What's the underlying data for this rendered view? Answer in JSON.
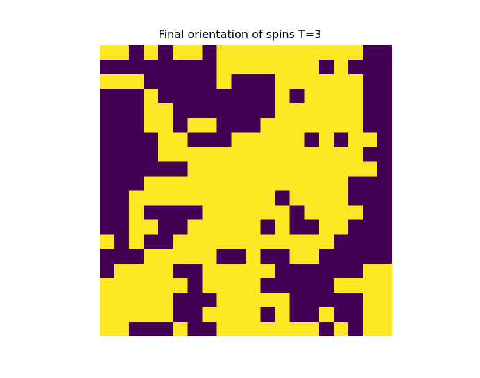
{
  "chart_data": {
    "type": "heatmap",
    "title": "Final orientation of spins T=3",
    "xlabel": "",
    "ylabel": "",
    "axes_visible": false,
    "colormap": "viridis",
    "colors": {
      "down": "#440154",
      "up": "#fde725"
    },
    "values_legend": {
      "0": "spin down (dark purple)",
      "1": "spin up (yellow)"
    },
    "grid": [
      [
        1,
        1,
        0,
        1,
        0,
        1,
        1,
        0,
        1,
        1,
        1,
        1,
        1,
        1,
        1,
        1,
        1,
        1,
        0,
        0
      ],
      [
        0,
        0,
        0,
        0,
        0,
        0,
        0,
        0,
        1,
        1,
        1,
        1,
        1,
        1,
        1,
        0,
        1,
        0,
        0,
        0
      ],
      [
        1,
        1,
        1,
        0,
        0,
        0,
        0,
        0,
        1,
        0,
        0,
        0,
        1,
        1,
        1,
        1,
        1,
        1,
        0,
        0
      ],
      [
        0,
        0,
        0,
        1,
        0,
        0,
        0,
        0,
        0,
        0,
        0,
        0,
        1,
        0,
        1,
        1,
        1,
        1,
        0,
        0
      ],
      [
        0,
        0,
        0,
        1,
        1,
        0,
        0,
        0,
        0,
        0,
        0,
        0,
        1,
        1,
        1,
        1,
        1,
        1,
        0,
        0
      ],
      [
        0,
        0,
        0,
        1,
        1,
        0,
        1,
        1,
        0,
        0,
        0,
        1,
        1,
        1,
        1,
        1,
        1,
        1,
        0,
        0
      ],
      [
        0,
        0,
        0,
        0,
        1,
        1,
        0,
        0,
        0,
        1,
        1,
        1,
        1,
        1,
        0,
        1,
        0,
        1,
        1,
        0
      ],
      [
        0,
        0,
        0,
        0,
        1,
        1,
        1,
        1,
        1,
        1,
        1,
        1,
        1,
        1,
        1,
        1,
        1,
        1,
        0,
        0
      ],
      [
        0,
        0,
        0,
        0,
        0,
        0,
        1,
        1,
        1,
        1,
        1,
        1,
        1,
        1,
        1,
        1,
        1,
        1,
        1,
        0
      ],
      [
        0,
        0,
        0,
        1,
        1,
        1,
        1,
        1,
        1,
        1,
        1,
        1,
        1,
        1,
        1,
        1,
        1,
        0,
        0,
        0
      ],
      [
        0,
        0,
        1,
        1,
        1,
        1,
        1,
        1,
        1,
        1,
        1,
        1,
        0,
        1,
        1,
        1,
        1,
        0,
        0,
        0
      ],
      [
        0,
        0,
        1,
        0,
        0,
        0,
        0,
        1,
        1,
        1,
        1,
        1,
        1,
        0,
        1,
        1,
        1,
        1,
        0,
        0
      ],
      [
        0,
        0,
        1,
        1,
        0,
        0,
        1,
        1,
        1,
        1,
        1,
        0,
        1,
        0,
        0,
        1,
        1,
        0,
        0,
        0
      ],
      [
        1,
        0,
        1,
        0,
        0,
        1,
        1,
        1,
        1,
        1,
        1,
        1,
        1,
        1,
        1,
        1,
        0,
        0,
        0,
        0
      ],
      [
        0,
        0,
        0,
        1,
        1,
        1,
        1,
        1,
        0,
        0,
        1,
        0,
        0,
        1,
        1,
        0,
        0,
        0,
        0,
        0
      ],
      [
        0,
        1,
        1,
        1,
        1,
        0,
        0,
        1,
        1,
        1,
        1,
        1,
        0,
        0,
        0,
        0,
        0,
        0,
        1,
        1
      ],
      [
        1,
        1,
        1,
        1,
        1,
        1,
        0,
        1,
        1,
        1,
        1,
        0,
        0,
        0,
        0,
        0,
        1,
        1,
        1,
        1
      ],
      [
        1,
        1,
        1,
        1,
        1,
        0,
        0,
        0,
        1,
        1,
        1,
        1,
        1,
        0,
        0,
        0,
        0,
        0,
        1,
        1
      ],
      [
        1,
        1,
        1,
        1,
        1,
        0,
        0,
        1,
        1,
        1,
        1,
        0,
        1,
        0,
        0,
        1,
        0,
        0,
        1,
        1
      ],
      [
        1,
        1,
        0,
        0,
        0,
        1,
        0,
        0,
        1,
        1,
        1,
        1,
        1,
        1,
        1,
        0,
        1,
        0,
        1,
        1
      ]
    ]
  }
}
